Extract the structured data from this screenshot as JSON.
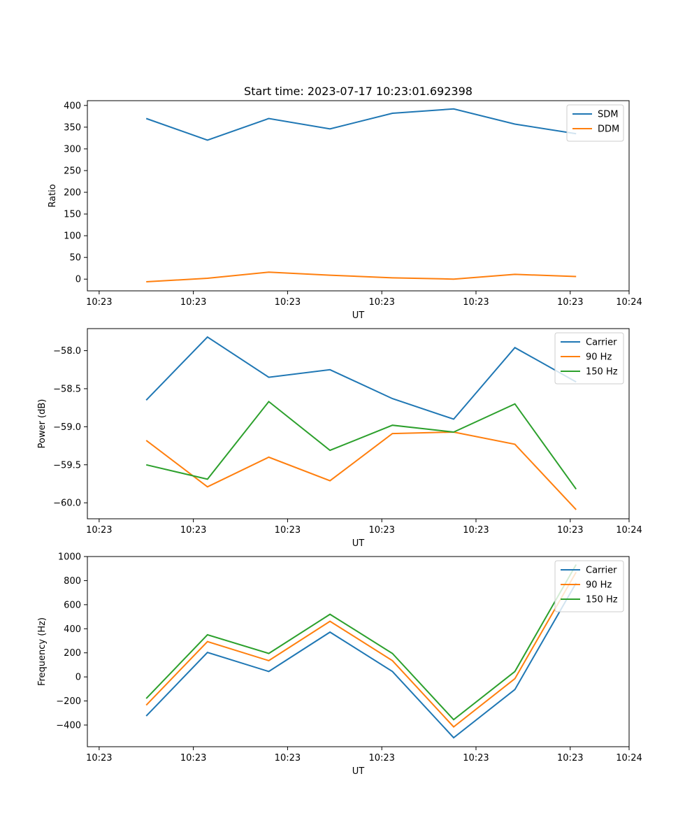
{
  "chart_data": [
    {
      "type": "line",
      "title": "Start time: 2023-07-17 10:23:01.692398",
      "xlabel": "UT",
      "ylabel": "Ratio",
      "xlim": [
        0,
        46
      ],
      "xticks": [
        {
          "v": 1,
          "label": "10:23"
        },
        {
          "v": 9,
          "label": "10:23"
        },
        {
          "v": 17,
          "label": "10:23"
        },
        {
          "v": 25,
          "label": "10:23"
        },
        {
          "v": 33,
          "label": "10:23"
        },
        {
          "v": 41,
          "label": "10:23"
        },
        {
          "v": 46,
          "label": "10:24"
        }
      ],
      "ylim": [
        -27,
        411
      ],
      "yticks": [
        {
          "v": 0,
          "label": "0"
        },
        {
          "v": 50,
          "label": "50"
        },
        {
          "v": 100,
          "label": "100"
        },
        {
          "v": 150,
          "label": "150"
        },
        {
          "v": 200,
          "label": "200"
        },
        {
          "v": 250,
          "label": "250"
        },
        {
          "v": 300,
          "label": "300"
        },
        {
          "v": 350,
          "label": "350"
        },
        {
          "v": 400,
          "label": "400"
        }
      ],
      "x": [
        5.0,
        10.2,
        15.4,
        20.6,
        25.9,
        31.1,
        36.3,
        41.5
      ],
      "series": [
        {
          "name": "SDM",
          "color": "#1f77b4",
          "values": [
            370,
            320,
            370,
            346,
            382,
            392,
            357,
            335
          ]
        },
        {
          "name": "DDM",
          "color": "#ff7f0e",
          "values": [
            -6,
            2,
            16,
            9,
            3,
            0,
            11,
            6
          ]
        }
      ],
      "legend": "top-right"
    },
    {
      "type": "line",
      "title": "",
      "xlabel": "UT",
      "ylabel": "Power (dB)",
      "xlim": [
        0,
        46
      ],
      "xticks": [
        {
          "v": 1,
          "label": "10:23"
        },
        {
          "v": 9,
          "label": "10:23"
        },
        {
          "v": 17,
          "label": "10:23"
        },
        {
          "v": 25,
          "label": "10:23"
        },
        {
          "v": 33,
          "label": "10:23"
        },
        {
          "v": 41,
          "label": "10:23"
        },
        {
          "v": 46,
          "label": "10:24"
        }
      ],
      "ylim": [
        -60.21,
        -57.71
      ],
      "yticks": [
        {
          "v": -60.0,
          "label": "−60.0"
        },
        {
          "v": -59.5,
          "label": "−59.5"
        },
        {
          "v": -59.0,
          "label": "−59.0"
        },
        {
          "v": -58.5,
          "label": "−58.5"
        },
        {
          "v": -58.0,
          "label": "−58.0"
        }
      ],
      "x": [
        5.0,
        10.2,
        15.4,
        20.6,
        25.9,
        31.1,
        36.3,
        41.5
      ],
      "series": [
        {
          "name": "Carrier",
          "color": "#1f77b4",
          "values": [
            -58.65,
            -57.82,
            -58.35,
            -58.25,
            -58.63,
            -58.9,
            -57.96,
            -58.41
          ]
        },
        {
          "name": "90 Hz",
          "color": "#ff7f0e",
          "values": [
            -59.18,
            -59.79,
            -59.4,
            -59.71,
            -59.09,
            -59.07,
            -59.23,
            -60.09
          ]
        },
        {
          "name": "150 Hz",
          "color": "#2ca02c",
          "values": [
            -59.5,
            -59.69,
            -58.67,
            -59.31,
            -58.98,
            -59.07,
            -58.7,
            -59.82
          ]
        }
      ],
      "legend": "top-right"
    },
    {
      "type": "line",
      "title": "",
      "xlabel": "UT",
      "ylabel": "Frequency (Hz)",
      "xlim": [
        0,
        46
      ],
      "xticks": [
        {
          "v": 1,
          "label": "10:23"
        },
        {
          "v": 9,
          "label": "10:23"
        },
        {
          "v": 17,
          "label": "10:23"
        },
        {
          "v": 25,
          "label": "10:23"
        },
        {
          "v": 33,
          "label": "10:23"
        },
        {
          "v": 41,
          "label": "10:23"
        },
        {
          "v": 46,
          "label": "10:24"
        }
      ],
      "ylim": [
        -580,
        1000
      ],
      "yticks": [
        {
          "v": -400,
          "label": "−400"
        },
        {
          "v": -200,
          "label": "−200"
        },
        {
          "v": 0,
          "label": "0"
        },
        {
          "v": 200,
          "label": "200"
        },
        {
          "v": 400,
          "label": "400"
        },
        {
          "v": 600,
          "label": "600"
        },
        {
          "v": 800,
          "label": "800"
        },
        {
          "v": 1000,
          "label": "1000"
        }
      ],
      "x": [
        5.0,
        10.2,
        15.4,
        20.6,
        25.9,
        31.1,
        36.3,
        41.5
      ],
      "series": [
        {
          "name": "Carrier",
          "color": "#1f77b4",
          "values": [
            -325,
            203,
            45,
            372,
            45,
            -505,
            -105,
            780
          ]
        },
        {
          "name": "90 Hz",
          "color": "#ff7f0e",
          "values": [
            -235,
            293,
            135,
            462,
            135,
            -415,
            -15,
            870
          ]
        },
        {
          "name": "150 Hz",
          "color": "#2ca02c",
          "values": [
            -180,
            350,
            195,
            520,
            195,
            -355,
            45,
            933
          ]
        }
      ],
      "legend": "top-right"
    }
  ]
}
